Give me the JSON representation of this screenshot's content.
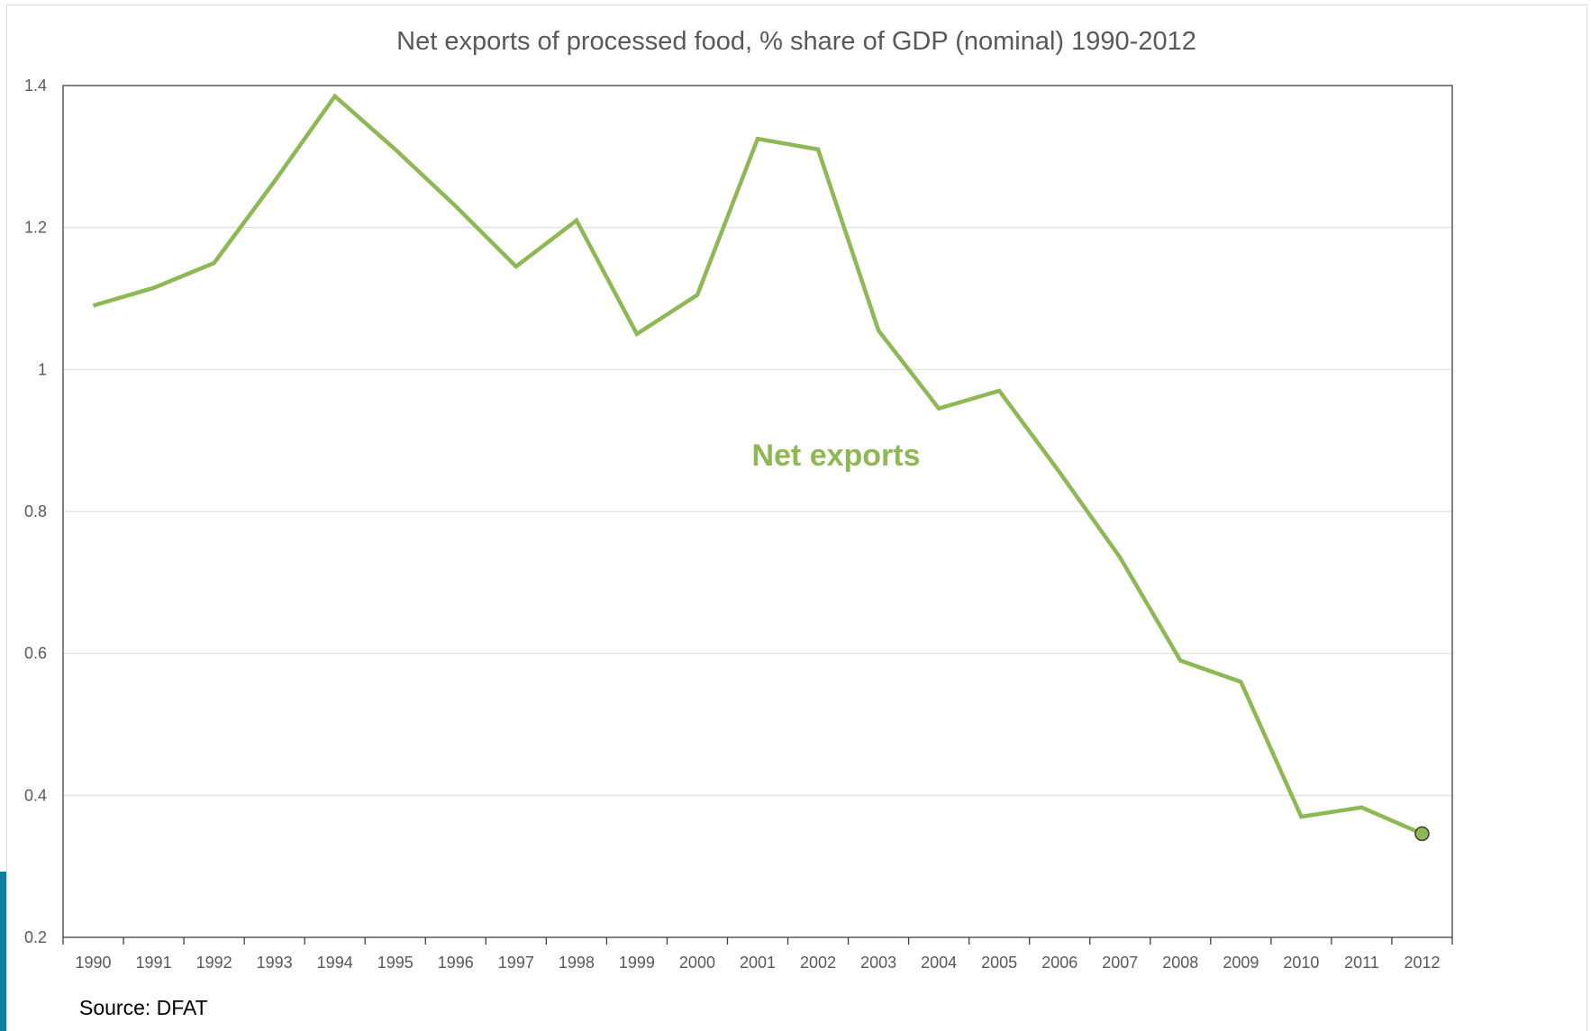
{
  "chart_data": {
    "type": "line",
    "title": "Net exports of processed food, % share of GDP (nominal) 1990-2012",
    "categories": [
      "1990",
      "1991",
      "1992",
      "1993",
      "1994",
      "1995",
      "1996",
      "1997",
      "1998",
      "1999",
      "2000",
      "2001",
      "2002",
      "2003",
      "2004",
      "2005",
      "2006",
      "2007",
      "2008",
      "2009",
      "2010",
      "2011",
      "2012"
    ],
    "series": [
      {
        "name": "Net exports",
        "color": "#8db853",
        "values": [
          1.09,
          1.115,
          1.15,
          1.265,
          1.385,
          1.31,
          1.23,
          1.145,
          1.21,
          1.05,
          1.105,
          1.325,
          1.31,
          1.055,
          0.945,
          0.97,
          0.855,
          0.735,
          0.59,
          0.56,
          0.37,
          0.383,
          0.346
        ]
      }
    ],
    "ylim": [
      0.2,
      1.4
    ],
    "yticks": [
      "0.2",
      "0.4",
      "0.6",
      "0.8",
      "1",
      "1.2",
      "1.4"
    ],
    "grid": true,
    "endpoint_marker": true,
    "source": "Source: DFAT"
  }
}
